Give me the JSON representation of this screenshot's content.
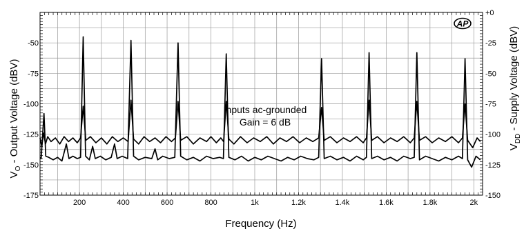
{
  "chart_data": {
    "type": "line",
    "xlabel": "Frequency (Hz)",
    "ylabel_left": "Vₒ - Output Voltage (dBV)",
    "ylabel_left_main": "V",
    "ylabel_left_sub": "O",
    "ylabel_left_rest": " - Output Voltage (dBV)",
    "ylabel_right_main": "V",
    "ylabel_right_sub": "DD",
    "ylabel_right_rest": " - Supply Voltage (dBV)",
    "xlim": [
      20,
      2040
    ],
    "left_ylim": [
      -175,
      -25
    ],
    "right_ylim": [
      -150,
      0
    ],
    "x_ticks": [
      {
        "value": 200,
        "label": "200"
      },
      {
        "value": 400,
        "label": "400"
      },
      {
        "value": 600,
        "label": "600"
      },
      {
        "value": 800,
        "label": "800"
      },
      {
        "value": 1000,
        "label": "1k"
      },
      {
        "value": 1200,
        "label": "1.2k"
      },
      {
        "value": 1400,
        "label": "1.4k"
      },
      {
        "value": 1600,
        "label": "1.6k"
      },
      {
        "value": 1800,
        "label": "1.8k"
      },
      {
        "value": 2000,
        "label": "2k"
      }
    ],
    "left_ticks": [
      {
        "value": -50,
        "label": "-50"
      },
      {
        "value": -75,
        "label": "-75"
      },
      {
        "value": -100,
        "label": "-100"
      },
      {
        "value": -125,
        "label": "-125"
      },
      {
        "value": -150,
        "label": "-150"
      },
      {
        "value": -175,
        "label": "-175"
      }
    ],
    "right_ticks": [
      {
        "value": 0,
        "label": "+0"
      },
      {
        "value": -25,
        "label": "-25"
      },
      {
        "value": -50,
        "label": "-50"
      },
      {
        "value": -75,
        "label": "-75"
      },
      {
        "value": -100,
        "label": "-100"
      },
      {
        "value": -125,
        "label": "-125"
      },
      {
        "value": -150,
        "label": "-150"
      }
    ],
    "annotations": [
      "Inputs ac-grounded",
      "Gain = 6 dB"
    ],
    "logo": "AP",
    "grid": true,
    "series": [
      {
        "axis": "right",
        "baseline": -119,
        "peaks": [
          [
            38,
            -83
          ],
          [
            140,
            -108
          ],
          [
            217,
            -20
          ],
          [
            260,
            -110
          ],
          [
            360,
            -108
          ],
          [
            435,
            -23
          ],
          [
            545,
            -112
          ],
          [
            650,
            -25
          ],
          [
            870,
            -34
          ],
          [
            1305,
            -38
          ],
          [
            1522,
            -33
          ],
          [
            1740,
            -33
          ],
          [
            1960,
            -38
          ]
        ],
        "values": [
          [
            20,
            -119
          ],
          [
            25,
            -120
          ],
          [
            38,
            -83
          ],
          [
            46,
            -118
          ],
          [
            60,
            -119
          ],
          [
            80,
            -121
          ],
          [
            100,
            -119
          ],
          [
            120,
            -122
          ],
          [
            140,
            -108
          ],
          [
            152,
            -120
          ],
          [
            170,
            -118
          ],
          [
            190,
            -120
          ],
          [
            205,
            -119
          ],
          [
            217,
            -20
          ],
          [
            228,
            -118
          ],
          [
            245,
            -121
          ],
          [
            260,
            -110
          ],
          [
            272,
            -120
          ],
          [
            295,
            -118
          ],
          [
            320,
            -121
          ],
          [
            345,
            -119
          ],
          [
            360,
            -108
          ],
          [
            372,
            -120
          ],
          [
            395,
            -118
          ],
          [
            420,
            -120
          ],
          [
            435,
            -23
          ],
          [
            447,
            -118
          ],
          [
            470,
            -121
          ],
          [
            500,
            -119
          ],
          [
            530,
            -120
          ],
          [
            545,
            -112
          ],
          [
            557,
            -121
          ],
          [
            580,
            -118
          ],
          [
            610,
            -120
          ],
          [
            635,
            -119
          ],
          [
            650,
            -25
          ],
          [
            662,
            -118
          ],
          [
            690,
            -121
          ],
          [
            720,
            -119
          ],
          [
            750,
            -122
          ],
          [
            780,
            -118
          ],
          [
            810,
            -120
          ],
          [
            840,
            -119
          ],
          [
            857,
            -120
          ],
          [
            870,
            -34
          ],
          [
            882,
            -119
          ],
          [
            910,
            -121
          ],
          [
            940,
            -118
          ],
          [
            970,
            -122
          ],
          [
            1000,
            -119
          ],
          [
            1030,
            -121
          ],
          [
            1060,
            -118
          ],
          [
            1090,
            -120
          ],
          [
            1120,
            -122
          ],
          [
            1150,
            -119
          ],
          [
            1180,
            -121
          ],
          [
            1210,
            -118
          ],
          [
            1240,
            -120
          ],
          [
            1270,
            -121
          ],
          [
            1292,
            -119
          ],
          [
            1305,
            -38
          ],
          [
            1317,
            -120
          ],
          [
            1345,
            -118
          ],
          [
            1375,
            -121
          ],
          [
            1405,
            -119
          ],
          [
            1435,
            -122
          ],
          [
            1465,
            -118
          ],
          [
            1495,
            -121
          ],
          [
            1510,
            -119
          ],
          [
            1522,
            -33
          ],
          [
            1534,
            -120
          ],
          [
            1560,
            -118
          ],
          [
            1590,
            -121
          ],
          [
            1620,
            -119
          ],
          [
            1650,
            -122
          ],
          [
            1680,
            -118
          ],
          [
            1710,
            -120
          ],
          [
            1728,
            -119
          ],
          [
            1740,
            -33
          ],
          [
            1752,
            -121
          ],
          [
            1780,
            -118
          ],
          [
            1810,
            -120
          ],
          [
            1840,
            -122
          ],
          [
            1870,
            -119
          ],
          [
            1900,
            -121
          ],
          [
            1930,
            -118
          ],
          [
            1948,
            -120
          ],
          [
            1960,
            -38
          ],
          [
            1972,
            -121
          ],
          [
            1990,
            -127
          ],
          [
            2010,
            -118
          ],
          [
            2030,
            -121
          ]
        ]
      },
      {
        "axis": "left",
        "baseline": -130,
        "peaks": [
          [
            217,
            -102
          ],
          [
            435,
            -97
          ],
          [
            650,
            -98
          ],
          [
            870,
            -98
          ],
          [
            1305,
            -103
          ],
          [
            1522,
            -97
          ],
          [
            1740,
            -98
          ],
          [
            1960,
            -100
          ]
        ],
        "values": [
          [
            20,
            -128
          ],
          [
            28,
            -135
          ],
          [
            36,
            -124
          ],
          [
            45,
            -133
          ],
          [
            55,
            -127
          ],
          [
            70,
            -131
          ],
          [
            90,
            -128
          ],
          [
            110,
            -133
          ],
          [
            130,
            -127
          ],
          [
            150,
            -131
          ],
          [
            170,
            -128
          ],
          [
            190,
            -132
          ],
          [
            205,
            -128
          ],
          [
            217,
            -102
          ],
          [
            229,
            -130
          ],
          [
            250,
            -127
          ],
          [
            275,
            -132
          ],
          [
            300,
            -128
          ],
          [
            325,
            -133
          ],
          [
            350,
            -127
          ],
          [
            375,
            -131
          ],
          [
            400,
            -128
          ],
          [
            422,
            -131
          ],
          [
            435,
            -97
          ],
          [
            447,
            -129
          ],
          [
            470,
            -133
          ],
          [
            495,
            -127
          ],
          [
            520,
            -131
          ],
          [
            545,
            -128
          ],
          [
            570,
            -132
          ],
          [
            595,
            -127
          ],
          [
            620,
            -131
          ],
          [
            638,
            -128
          ],
          [
            650,
            -98
          ],
          [
            662,
            -130
          ],
          [
            690,
            -127
          ],
          [
            720,
            -133
          ],
          [
            750,
            -128
          ],
          [
            780,
            -131
          ],
          [
            800,
            -127
          ],
          [
            825,
            -132
          ],
          [
            845,
            -128
          ],
          [
            858,
            -131
          ],
          [
            870,
            -98
          ],
          [
            882,
            -129
          ],
          [
            905,
            -133
          ],
          [
            935,
            -127
          ],
          [
            965,
            -132
          ],
          [
            995,
            -128
          ],
          [
            1025,
            -131
          ],
          [
            1055,
            -127
          ],
          [
            1085,
            -133
          ],
          [
            1115,
            -128
          ],
          [
            1145,
            -131
          ],
          [
            1175,
            -127
          ],
          [
            1205,
            -132
          ],
          [
            1235,
            -128
          ],
          [
            1265,
            -131
          ],
          [
            1292,
            -128
          ],
          [
            1305,
            -103
          ],
          [
            1317,
            -130
          ],
          [
            1345,
            -127
          ],
          [
            1375,
            -132
          ],
          [
            1405,
            -128
          ],
          [
            1435,
            -131
          ],
          [
            1465,
            -127
          ],
          [
            1495,
            -132
          ],
          [
            1510,
            -128
          ],
          [
            1522,
            -97
          ],
          [
            1534,
            -130
          ],
          [
            1560,
            -127
          ],
          [
            1590,
            -132
          ],
          [
            1620,
            -128
          ],
          [
            1650,
            -131
          ],
          [
            1680,
            -127
          ],
          [
            1710,
            -132
          ],
          [
            1728,
            -128
          ],
          [
            1740,
            -98
          ],
          [
            1752,
            -130
          ],
          [
            1780,
            -127
          ],
          [
            1810,
            -132
          ],
          [
            1840,
            -128
          ],
          [
            1870,
            -131
          ],
          [
            1900,
            -127
          ],
          [
            1930,
            -132
          ],
          [
            1948,
            -128
          ],
          [
            1960,
            -100
          ],
          [
            1972,
            -130
          ],
          [
            1995,
            -136
          ],
          [
            2015,
            -128
          ],
          [
            2030,
            -131
          ]
        ]
      }
    ]
  }
}
